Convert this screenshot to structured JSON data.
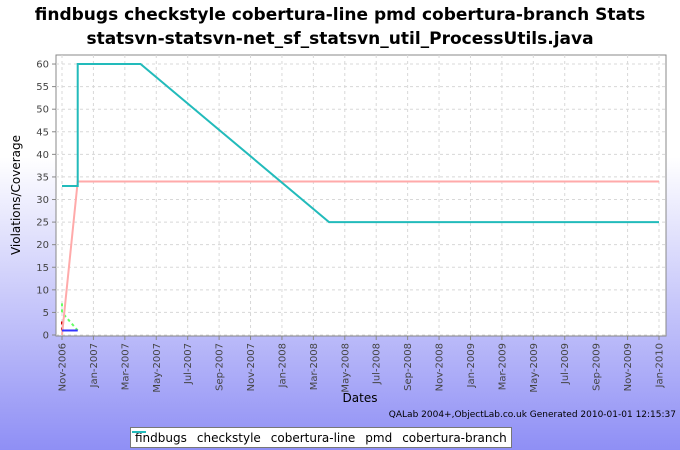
{
  "chart_data": {
    "type": "line",
    "title": "findbugs checkstyle cobertura-line pmd cobertura-branch  Stats statsvn-statsvn-net_sf_statsvn_util_ProcessUtils.java",
    "xlabel": "Dates",
    "ylabel": "Violations/Coverage",
    "footer": "QALab 2004+,ObjectLab.co.uk  Generated 2010-01-01 12:15:37",
    "xlim": [
      "2006-11",
      "2010-01"
    ],
    "xticks": [
      {
        "value": "2006-11",
        "label": "Nov-2006"
      },
      {
        "value": "2007-01",
        "label": "Jan-2007"
      },
      {
        "value": "2007-03",
        "label": "Mar-2007"
      },
      {
        "value": "2007-05",
        "label": "May-2007"
      },
      {
        "value": "2007-07",
        "label": "Jul-2007"
      },
      {
        "value": "2007-09",
        "label": "Sep-2007"
      },
      {
        "value": "2007-11",
        "label": "Nov-2007"
      },
      {
        "value": "2008-01",
        "label": "Jan-2008"
      },
      {
        "value": "2008-03",
        "label": "Mar-2008"
      },
      {
        "value": "2008-05",
        "label": "May-2008"
      },
      {
        "value": "2008-07",
        "label": "Jul-2008"
      },
      {
        "value": "2008-09",
        "label": "Sep-2008"
      },
      {
        "value": "2008-11",
        "label": "Nov-2008"
      },
      {
        "value": "2009-01",
        "label": "Jan-2009"
      },
      {
        "value": "2009-03",
        "label": "Mar-2009"
      },
      {
        "value": "2009-05",
        "label": "May-2009"
      },
      {
        "value": "2009-07",
        "label": "Jul-2009"
      },
      {
        "value": "2009-09",
        "label": "Sep-2009"
      },
      {
        "value": "2009-11",
        "label": "Nov-2009"
      },
      {
        "value": "2010-01",
        "label": "Jan-2010"
      }
    ],
    "ylim": [
      0,
      62
    ],
    "yticks": [
      0,
      5,
      10,
      15,
      20,
      25,
      30,
      35,
      40,
      45,
      50,
      55,
      60
    ],
    "grid": true,
    "series": [
      {
        "name": "findbugs",
        "color": "#cc0000",
        "dashed": true,
        "x": [
          "2006-11",
          "2006-11"
        ],
        "values": [
          3,
          1
        ]
      },
      {
        "name": "checkstyle",
        "color": "#66ff66",
        "dashed": true,
        "x": [
          "2006-11",
          "2006-11",
          "2006-12",
          "2006-12"
        ],
        "values": [
          7,
          5,
          1,
          1
        ]
      },
      {
        "name": "cobertura-line",
        "color": "#ffaaaa",
        "dashed": false,
        "x": [
          "2006-11",
          "2006-12",
          "2010-01"
        ],
        "values": [
          0,
          34,
          34
        ]
      },
      {
        "name": "pmd",
        "color": "#3333ff",
        "dashed": false,
        "x": [
          "2006-11",
          "2006-12"
        ],
        "values": [
          1,
          1
        ]
      },
      {
        "name": "cobertura-branch",
        "color": "#22bbbb",
        "dashed": false,
        "x": [
          "2006-11",
          "2006-12",
          "2006-12",
          "2007-04",
          "2008-04",
          "2010-01"
        ],
        "values": [
          33,
          33,
          60,
          60,
          25,
          25
        ]
      }
    ]
  }
}
